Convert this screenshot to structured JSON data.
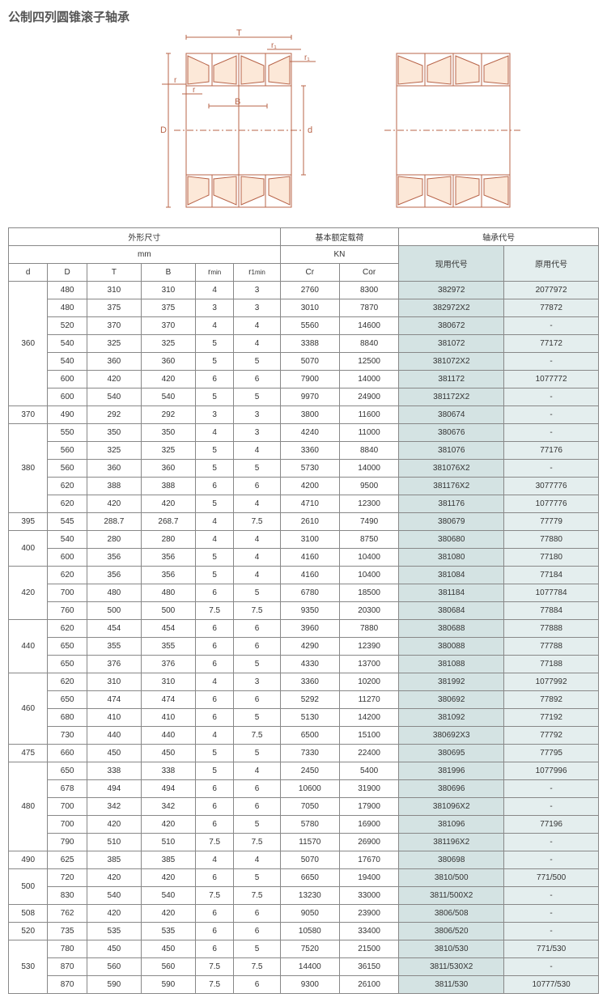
{
  "title": "公制四列圆锥滚子轴承",
  "diagram": {
    "labels": {
      "T": "T",
      "r1": "r₁",
      "r1b": "r₁",
      "r": "r",
      "rb": "r",
      "D": "D",
      "B": "B",
      "d": "d"
    }
  },
  "headers": {
    "dims": "外形尺寸",
    "load": "基本额定载荷",
    "code": "轴承代号",
    "mm": "mm",
    "kn": "KN",
    "cur": "现用代号",
    "old": "原用代号",
    "d": "d",
    "D": "D",
    "T": "T",
    "B": "B",
    "rmin": "r",
    "rmin_sub": "min",
    "r1min": "r",
    "r1min_sub": "1min",
    "Cr": "Cr",
    "Cor": "Cor"
  },
  "groups": [
    {
      "d": "360",
      "rows": [
        [
          "480",
          "310",
          "310",
          "4",
          "3",
          "2760",
          "8300",
          "382972",
          "2077972"
        ],
        [
          "480",
          "375",
          "375",
          "3",
          "3",
          "3010",
          "7870",
          "382972X2",
          "77872"
        ],
        [
          "520",
          "370",
          "370",
          "4",
          "4",
          "5560",
          "14600",
          "380672",
          "-"
        ],
        [
          "540",
          "325",
          "325",
          "5",
          "4",
          "3388",
          "8840",
          "381072",
          "77172"
        ],
        [
          "540",
          "360",
          "360",
          "5",
          "5",
          "5070",
          "12500",
          "381072X2",
          "-"
        ],
        [
          "600",
          "420",
          "420",
          "6",
          "6",
          "7900",
          "14000",
          "381172",
          "1077772"
        ],
        [
          "600",
          "540",
          "540",
          "5",
          "5",
          "9970",
          "24900",
          "381172X2",
          "-"
        ]
      ]
    },
    {
      "d": "370",
      "rows": [
        [
          "490",
          "292",
          "292",
          "3",
          "3",
          "3800",
          "11600",
          "380674",
          "-"
        ]
      ]
    },
    {
      "d": "380",
      "rows": [
        [
          "550",
          "350",
          "350",
          "4",
          "3",
          "4240",
          "11000",
          "380676",
          "-"
        ],
        [
          "560",
          "325",
          "325",
          "5",
          "4",
          "3360",
          "8840",
          "381076",
          "77176"
        ],
        [
          "560",
          "360",
          "360",
          "5",
          "5",
          "5730",
          "14000",
          "381076X2",
          "-"
        ],
        [
          "620",
          "388",
          "388",
          "6",
          "6",
          "4200",
          "9500",
          "381176X2",
          "3077776"
        ],
        [
          "620",
          "420",
          "420",
          "5",
          "4",
          "4710",
          "12300",
          "381176",
          "1077776"
        ]
      ]
    },
    {
      "d": "395",
      "rows": [
        [
          "545",
          "288.7",
          "268.7",
          "4",
          "7.5",
          "2610",
          "7490",
          "380679",
          "77779"
        ]
      ]
    },
    {
      "d": "400",
      "rows": [
        [
          "540",
          "280",
          "280",
          "4",
          "4",
          "3100",
          "8750",
          "380680",
          "77880"
        ],
        [
          "600",
          "356",
          "356",
          "5",
          "4",
          "4160",
          "10400",
          "381080",
          "77180"
        ]
      ]
    },
    {
      "d": "420",
      "rows": [
        [
          "620",
          "356",
          "356",
          "5",
          "4",
          "4160",
          "10400",
          "381084",
          "77184"
        ],
        [
          "700",
          "480",
          "480",
          "6",
          "5",
          "6780",
          "18500",
          "381184",
          "1077784"
        ],
        [
          "760",
          "500",
          "500",
          "7.5",
          "7.5",
          "9350",
          "20300",
          "380684",
          "77884"
        ]
      ]
    },
    {
      "d": "440",
      "rows": [
        [
          "620",
          "454",
          "454",
          "6",
          "6",
          "3960",
          "7880",
          "380688",
          "77888"
        ],
        [
          "650",
          "355",
          "355",
          "6",
          "6",
          "4290",
          "12390",
          "380088",
          "77788"
        ],
        [
          "650",
          "376",
          "376",
          "6",
          "5",
          "4330",
          "13700",
          "381088",
          "77188"
        ]
      ]
    },
    {
      "d": "460",
      "rows": [
        [
          "620",
          "310",
          "310",
          "4",
          "3",
          "3360",
          "10200",
          "381992",
          "1077992"
        ],
        [
          "650",
          "474",
          "474",
          "6",
          "6",
          "5292",
          "11270",
          "380692",
          "77892"
        ],
        [
          "680",
          "410",
          "410",
          "6",
          "5",
          "5130",
          "14200",
          "381092",
          "77192"
        ],
        [
          "730",
          "440",
          "440",
          "4",
          "7.5",
          "6500",
          "15100",
          "380692X3",
          "77792"
        ]
      ]
    },
    {
      "d": "475",
      "rows": [
        [
          "660",
          "450",
          "450",
          "5",
          "5",
          "7330",
          "22400",
          "380695",
          "77795"
        ]
      ]
    },
    {
      "d": "480",
      "rows": [
        [
          "650",
          "338",
          "338",
          "5",
          "4",
          "2450",
          "5400",
          "381996",
          "1077996"
        ],
        [
          "678",
          "494",
          "494",
          "6",
          "6",
          "10600",
          "31900",
          "380696",
          "-"
        ],
        [
          "700",
          "342",
          "342",
          "6",
          "6",
          "7050",
          "17900",
          "381096X2",
          "-"
        ],
        [
          "700",
          "420",
          "420",
          "6",
          "5",
          "5780",
          "16900",
          "381096",
          "77196"
        ],
        [
          "790",
          "510",
          "510",
          "7.5",
          "7.5",
          "11570",
          "26900",
          "381196X2",
          "-"
        ]
      ]
    },
    {
      "d": "490",
      "rows": [
        [
          "625",
          "385",
          "385",
          "4",
          "4",
          "5070",
          "17670",
          "380698",
          "-"
        ]
      ]
    },
    {
      "d": "500",
      "rows": [
        [
          "720",
          "420",
          "420",
          "6",
          "5",
          "6650",
          "19400",
          "3810/500",
          "771/500"
        ],
        [
          "830",
          "540",
          "540",
          "7.5",
          "7.5",
          "13230",
          "33000",
          "3811/500X2",
          "-"
        ]
      ]
    },
    {
      "d": "508",
      "rows": [
        [
          "762",
          "420",
          "420",
          "6",
          "6",
          "9050",
          "23900",
          "3806/508",
          "-"
        ]
      ]
    },
    {
      "d": "520",
      "rows": [
        [
          "735",
          "535",
          "535",
          "6",
          "6",
          "10580",
          "33400",
          "3806/520",
          "-"
        ]
      ]
    },
    {
      "d": "530",
      "rows": [
        [
          "780",
          "450",
          "450",
          "6",
          "5",
          "7520",
          "21500",
          "3810/530",
          "771/530"
        ],
        [
          "870",
          "560",
          "560",
          "7.5",
          "7.5",
          "14400",
          "36150",
          "3811/530X2",
          "-"
        ],
        [
          "870",
          "590",
          "590",
          "7.5",
          "6",
          "9300",
          "26100",
          "3811/530",
          "10777/530"
        ]
      ]
    }
  ]
}
